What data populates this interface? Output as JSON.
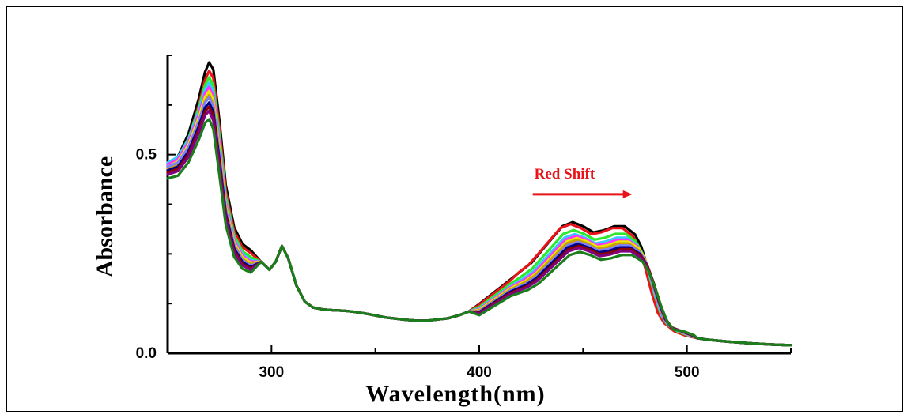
{
  "chart_data": {
    "type": "line",
    "title": "",
    "xlabel": "Wavelength(nm)",
    "ylabel": "Absorbance",
    "xlim": [
      250,
      550
    ],
    "ylim": [
      0.0,
      0.75
    ],
    "x_ticks": [
      300,
      400,
      500
    ],
    "x_tick_labels": [
      "300",
      "400",
      "500"
    ],
    "y_ticks": [
      0.0,
      0.5
    ],
    "y_tick_labels": [
      "0.0",
      "0.5"
    ],
    "grid": false,
    "legend": "none",
    "annotation": {
      "text": "Red Shift",
      "color": "#e8141a",
      "arrow": "right",
      "anchor_x": 425,
      "anchor_y": 0.44
    },
    "x": [
      250,
      255,
      260,
      265,
      268,
      270,
      272,
      275,
      278,
      282,
      286,
      290,
      295,
      299,
      302,
      305,
      308,
      312,
      316,
      320,
      325,
      330,
      335,
      340,
      345,
      350,
      355,
      360,
      365,
      370,
      375,
      380,
      385,
      390,
      395,
      400,
      405,
      410,
      415,
      420,
      425,
      430,
      435,
      440,
      445,
      450,
      455,
      460,
      465,
      470,
      475,
      478,
      481,
      484,
      487,
      490,
      495,
      500,
      505,
      510,
      520,
      530,
      540,
      550
    ],
    "base": [
      0.47,
      0.49,
      0.54,
      0.62,
      0.68,
      0.7,
      0.68,
      0.55,
      0.4,
      0.3,
      0.26,
      0.245,
      0.23,
      0.21,
      0.23,
      0.27,
      0.24,
      0.17,
      0.13,
      0.115,
      0.11,
      0.108,
      0.107,
      0.104,
      0.1,
      0.095,
      0.09,
      0.087,
      0.084,
      0.082,
      0.082,
      0.085,
      0.088,
      0.095,
      0.105,
      0.12,
      0.14,
      0.16,
      0.18,
      0.2,
      0.22,
      0.25,
      0.28,
      0.31,
      0.32,
      0.31,
      0.295,
      0.3,
      0.31,
      0.31,
      0.29,
      0.26,
      0.21,
      0.15,
      0.1,
      0.075,
      0.055,
      0.045,
      0.038,
      0.034,
      0.029,
      0.025,
      0.022,
      0.02
    ],
    "series": [
      {
        "color": "#000000",
        "peak": 0.74,
        "peak2": 0.33,
        "offset": 0.0,
        "shift": 0.0
      },
      {
        "color": "#e8141a",
        "peak": 0.72,
        "peak2": 0.325,
        "offset": -0.01,
        "shift": -1.0
      },
      {
        "color": "#2ee82e",
        "peak": 0.69,
        "peak2": 0.31,
        "offset": 0.005,
        "shift": 0.5
      },
      {
        "color": "#33ccff",
        "peak": 0.67,
        "peak2": 0.3,
        "offset": 0.01,
        "shift": 1.0
      },
      {
        "color": "#ff33ff",
        "peak": 0.66,
        "peak2": 0.295,
        "offset": 0.005,
        "shift": 1.5
      },
      {
        "color": "#e8e800",
        "peak": 0.65,
        "peak2": 0.29,
        "offset": 0.0,
        "shift": 2.0
      },
      {
        "color": "#c8a000",
        "peak": 0.64,
        "peak2": 0.285,
        "offset": -0.005,
        "shift": 2.0
      },
      {
        "color": "#7f7fff",
        "peak": 0.63,
        "peak2": 0.28,
        "offset": 0.0,
        "shift": 2.5
      },
      {
        "color": "#000080",
        "peak": 0.62,
        "peak2": 0.275,
        "offset": -0.01,
        "shift": 2.5
      },
      {
        "color": "#8b0000",
        "peak": 0.61,
        "peak2": 0.27,
        "offset": -0.015,
        "shift": 3.0
      },
      {
        "color": "#800080",
        "peak": 0.6,
        "peak2": 0.265,
        "offset": -0.02,
        "shift": 3.0
      },
      {
        "color": "#1a7f1a",
        "peak": 0.58,
        "peak2": 0.255,
        "offset": -0.03,
        "shift": 3.5
      }
    ]
  }
}
